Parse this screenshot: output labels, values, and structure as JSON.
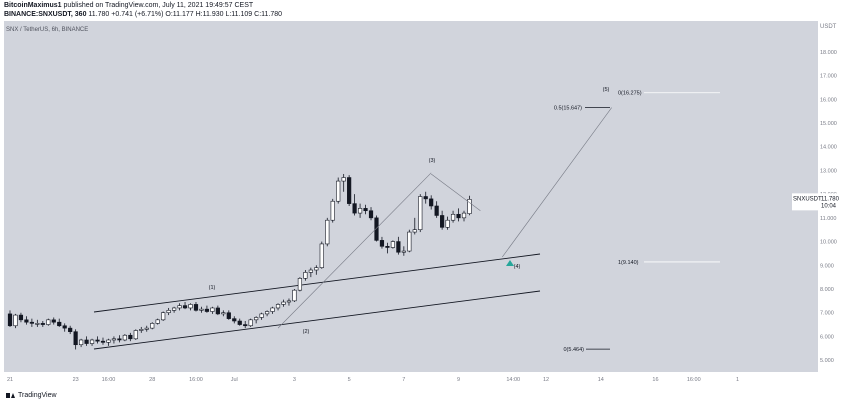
{
  "header": {
    "author": "BitcoinMaximus1",
    "published_note": "published on TradingView.com, July 11, 2021 19:49:57 CEST",
    "symbol_line": "BINANCE:SNXUSDT, 360",
    "last": "11.780",
    "change": "+0.741 (+6.71%)",
    "open": "11.177",
    "high": "11.930",
    "low": "11.109",
    "close": "11.780"
  },
  "chart_data": {
    "type": "candlestick",
    "title": "SNX / TetherUS, 6h, BINANCE",
    "symbol": "SNXUSDT",
    "last_price": "11.780",
    "countdown": "10:04",
    "currency": "USDT",
    "ylim": [
      4.5,
      19.3
    ],
    "y_ticks": [
      "5.000",
      "6.000",
      "7.000",
      "8.000",
      "9.000",
      "10.000",
      "11.000",
      "12.000",
      "13.000",
      "14.000",
      "15.000",
      "16.000",
      "17.000",
      "18.000"
    ],
    "x_ticks": [
      {
        "i": 0,
        "label": "21"
      },
      {
        "i": 12,
        "label": "23"
      },
      {
        "i": 18,
        "label": "16:00"
      },
      {
        "i": 26,
        "label": "28"
      },
      {
        "i": 34,
        "label": "16:00"
      },
      {
        "i": 41,
        "label": "Jul"
      },
      {
        "i": 52,
        "label": "3"
      },
      {
        "i": 62,
        "label": "5"
      },
      {
        "i": 72,
        "label": "7"
      },
      {
        "i": 82,
        "label": "9"
      },
      {
        "i": 92,
        "label": "14:00"
      },
      {
        "i": 98,
        "label": "12"
      },
      {
        "i": 108,
        "label": "14"
      },
      {
        "i": 118,
        "label": "16"
      },
      {
        "i": 125,
        "label": "16:00"
      },
      {
        "i": 133,
        "label": "1"
      }
    ],
    "candles": [
      [
        6.95,
        7.1,
        6.4,
        6.45
      ],
      [
        6.45,
        6.95,
        6.35,
        6.9
      ],
      [
        6.9,
        7.0,
        6.6,
        6.7
      ],
      [
        6.7,
        6.85,
        6.5,
        6.6
      ],
      [
        6.6,
        6.75,
        6.4,
        6.55
      ],
      [
        6.55,
        6.7,
        6.4,
        6.55
      ],
      [
        6.55,
        6.65,
        6.4,
        6.5
      ],
      [
        6.5,
        6.75,
        6.45,
        6.7
      ],
      [
        6.7,
        6.8,
        6.5,
        6.6
      ],
      [
        6.6,
        6.75,
        6.4,
        6.45
      ],
      [
        6.45,
        6.55,
        6.2,
        6.35
      ],
      [
        6.35,
        6.45,
        6.1,
        6.2
      ],
      [
        6.2,
        6.3,
        5.45,
        5.65
      ],
      [
        5.65,
        5.9,
        5.55,
        5.85
      ],
      [
        5.85,
        6.0,
        5.6,
        5.7
      ],
      [
        5.7,
        5.9,
        5.6,
        5.85
      ],
      [
        5.85,
        6.0,
        5.7,
        5.8
      ],
      [
        5.8,
        5.95,
        5.65,
        5.75
      ],
      [
        5.75,
        5.9,
        5.6,
        5.85
      ],
      [
        5.85,
        6.0,
        5.7,
        5.9
      ],
      [
        5.9,
        6.05,
        5.75,
        5.85
      ],
      [
        5.85,
        6.1,
        5.8,
        6.05
      ],
      [
        6.05,
        6.15,
        5.8,
        5.9
      ],
      [
        5.9,
        6.3,
        5.85,
        6.25
      ],
      [
        6.25,
        6.4,
        6.15,
        6.3
      ],
      [
        6.3,
        6.45,
        6.2,
        6.35
      ],
      [
        6.35,
        6.6,
        6.3,
        6.55
      ],
      [
        6.55,
        6.75,
        6.5,
        6.7
      ],
      [
        6.7,
        7.05,
        6.65,
        7.0
      ],
      [
        7.0,
        7.2,
        6.9,
        7.1
      ],
      [
        7.1,
        7.25,
        7.0,
        7.2
      ],
      [
        7.2,
        7.4,
        7.1,
        7.3
      ],
      [
        7.3,
        7.45,
        7.15,
        7.2
      ],
      [
        7.2,
        7.4,
        7.1,
        7.35
      ],
      [
        7.35,
        7.45,
        7.05,
        7.1
      ],
      [
        7.1,
        7.25,
        7.0,
        7.15
      ],
      [
        7.15,
        7.3,
        7.0,
        7.05
      ],
      [
        7.05,
        7.25,
        6.95,
        7.2
      ],
      [
        7.2,
        7.3,
        6.9,
        6.95
      ],
      [
        6.95,
        7.1,
        6.85,
        7.0
      ],
      [
        7.0,
        7.1,
        6.7,
        6.75
      ],
      [
        6.75,
        6.85,
        6.55,
        6.65
      ],
      [
        6.65,
        6.75,
        6.45,
        6.5
      ],
      [
        6.5,
        6.65,
        6.35,
        6.45
      ],
      [
        6.45,
        6.75,
        6.4,
        6.7
      ],
      [
        6.7,
        6.85,
        6.55,
        6.8
      ],
      [
        6.8,
        7.0,
        6.7,
        6.95
      ],
      [
        6.95,
        7.1,
        6.85,
        7.05
      ],
      [
        7.05,
        7.25,
        6.95,
        7.2
      ],
      [
        7.2,
        7.4,
        7.1,
        7.35
      ],
      [
        7.35,
        7.55,
        7.25,
        7.45
      ],
      [
        7.45,
        7.6,
        7.3,
        7.5
      ],
      [
        7.5,
        8.0,
        7.45,
        7.95
      ],
      [
        7.95,
        8.5,
        7.9,
        8.45
      ],
      [
        8.45,
        8.8,
        8.35,
        8.7
      ],
      [
        8.7,
        8.9,
        8.5,
        8.8
      ],
      [
        8.8,
        9.0,
        8.6,
        8.9
      ],
      [
        8.9,
        10.0,
        8.85,
        9.9
      ],
      [
        9.9,
        11.0,
        9.8,
        10.9
      ],
      [
        10.9,
        11.8,
        10.8,
        11.7
      ],
      [
        11.7,
        12.7,
        11.6,
        12.55
      ],
      [
        12.55,
        12.85,
        12.1,
        12.7
      ],
      [
        12.7,
        12.8,
        11.5,
        11.6
      ],
      [
        11.6,
        12.0,
        11.1,
        11.2
      ],
      [
        11.2,
        11.6,
        11.0,
        11.4
      ],
      [
        11.4,
        11.55,
        11.15,
        11.3
      ],
      [
        11.3,
        11.45,
        10.9,
        11.0
      ],
      [
        11.0,
        11.1,
        10.0,
        10.05
      ],
      [
        10.05,
        10.2,
        9.7,
        9.8
      ],
      [
        9.8,
        9.95,
        9.5,
        9.75
      ],
      [
        9.75,
        10.05,
        9.7,
        10.0
      ],
      [
        10.0,
        10.2,
        9.45,
        9.55
      ],
      [
        9.55,
        9.8,
        9.4,
        9.6
      ],
      [
        9.6,
        10.5,
        9.55,
        10.4
      ],
      [
        10.4,
        11.0,
        10.3,
        10.5
      ],
      [
        10.5,
        12.0,
        10.4,
        11.9
      ],
      [
        11.9,
        12.1,
        11.6,
        11.8
      ],
      [
        11.8,
        11.95,
        11.35,
        11.5
      ],
      [
        11.5,
        11.7,
        11.0,
        11.1
      ],
      [
        11.1,
        11.3,
        10.5,
        10.6
      ],
      [
        10.6,
        11.05,
        10.5,
        10.9
      ],
      [
        10.9,
        11.3,
        10.8,
        11.15
      ],
      [
        11.15,
        11.4,
        10.85,
        11.0
      ],
      [
        11.0,
        11.3,
        10.85,
        11.2
      ],
      [
        11.177,
        11.93,
        11.109,
        11.78
      ]
    ],
    "annotations": {
      "wave_labels": [
        "(1)",
        "(2)",
        "(3)",
        "(4)",
        "(5)"
      ],
      "fib_levels": [
        {
          "label": "0(5.464)",
          "value": 5.464
        },
        {
          "label": "1(9.140)",
          "value": 9.14
        },
        {
          "label": "0.5(15.647)",
          "value": 15.647
        },
        {
          "label": "0(16.275)",
          "value": 16.275
        }
      ]
    }
  },
  "footer": {
    "brand": "TradingView"
  },
  "colors": {
    "background": "#d1d4dc",
    "up_candle": "#ffffff",
    "down_candle": "#131722",
    "marker": "#26a69a"
  }
}
